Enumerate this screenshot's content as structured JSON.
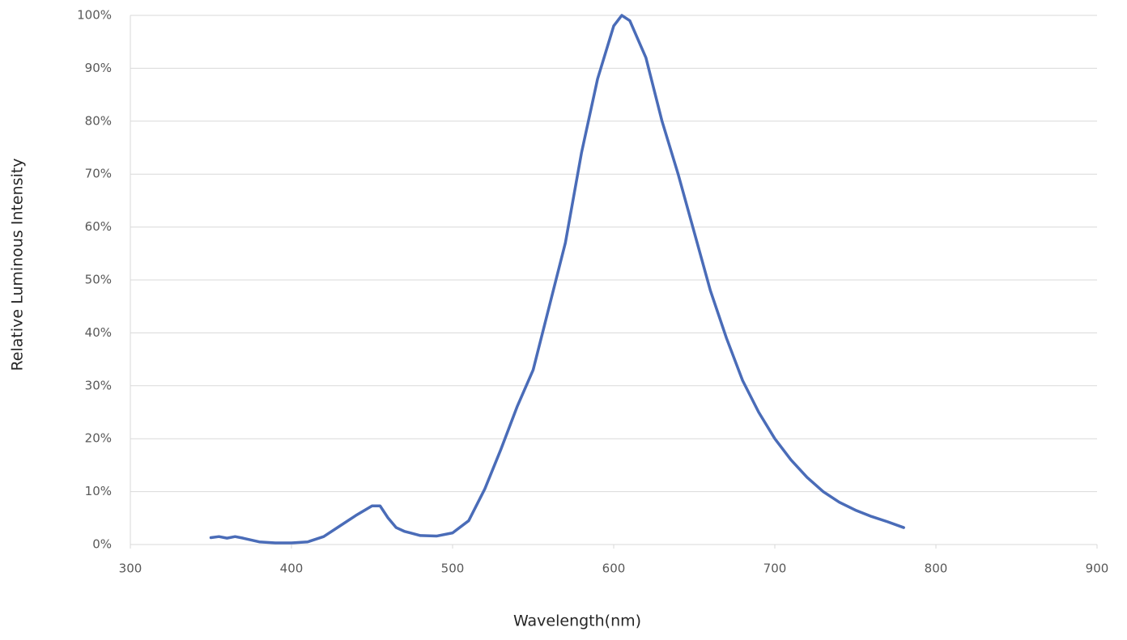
{
  "chart_data": {
    "type": "line",
    "xlabel": "Wavelength(nm)",
    "ylabel": "Relative Luminous Intensity",
    "x": [
      350,
      355,
      360,
      365,
      370,
      380,
      390,
      400,
      410,
      420,
      430,
      440,
      450,
      455,
      460,
      465,
      470,
      480,
      490,
      500,
      510,
      520,
      530,
      540,
      550,
      560,
      570,
      580,
      590,
      600,
      605,
      610,
      620,
      630,
      640,
      650,
      660,
      670,
      680,
      690,
      700,
      710,
      720,
      730,
      740,
      750,
      760,
      770,
      780
    ],
    "values": [
      1.3,
      1.5,
      1.2,
      1.5,
      1.2,
      0.5,
      0.3,
      0.3,
      0.5,
      1.5,
      3.5,
      5.5,
      7.3,
      7.3,
      5,
      3.2,
      2.5,
      1.7,
      1.6,
      2.2,
      4.5,
      10.5,
      18,
      26,
      33,
      45,
      57,
      74,
      88,
      98,
      100,
      99,
      92,
      80,
      70,
      59,
      48,
      39,
      31,
      25,
      20,
      16,
      12.7,
      10,
      8,
      6.5,
      5.3,
      4.3,
      3.2
    ],
    "color": "#4a6cb8",
    "xlim": [
      300,
      900
    ],
    "xticks": [
      300,
      400,
      500,
      600,
      700,
      800,
      900
    ],
    "ylim": [
      0,
      100
    ],
    "yticks": [
      {
        "value": 0,
        "label": "0%"
      },
      {
        "value": 10,
        "label": "10%"
      },
      {
        "value": 20,
        "label": "20%"
      },
      {
        "value": 30,
        "label": "30%"
      },
      {
        "value": 40,
        "label": "40%"
      },
      {
        "value": 50,
        "label": "50%"
      },
      {
        "value": 60,
        "label": "60%"
      },
      {
        "value": 70,
        "label": "70%"
      },
      {
        "value": 80,
        "label": "80%"
      },
      {
        "value": 90,
        "label": "90%"
      },
      {
        "value": 100,
        "label": "100%"
      }
    ],
    "grid": true
  }
}
